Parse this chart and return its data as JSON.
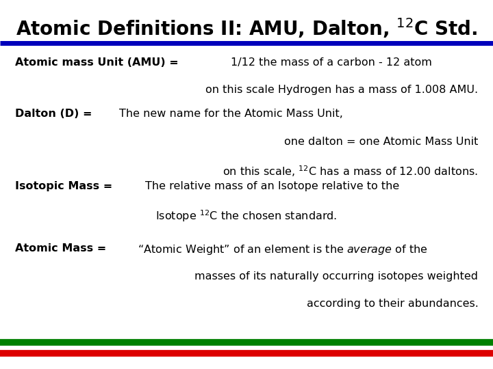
{
  "title_plain": "Atomic Definitions II: AMU, Dalton, ",
  "title_super": "12",
  "title_end": "C Std.",
  "title_fontsize": 20,
  "bg_color": "#ffffff",
  "header_line_color": "#0000bb",
  "footer_line1_color": "#008000",
  "footer_line2_color": "#dd0000",
  "text_color": "#000000",
  "font_size": 11.5,
  "fig_width": 7.2,
  "fig_height": 5.4,
  "dpi": 100
}
